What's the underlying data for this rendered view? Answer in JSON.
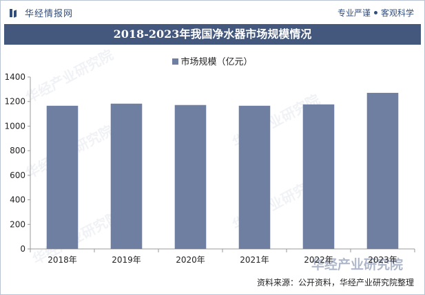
{
  "header": {
    "logo_text": "华经情报网",
    "slogan_left": "专业严谨",
    "slogan_right": "客观科学"
  },
  "title": "2018-2023年我国净水器市场规模情况",
  "legend_label": "市场规模（亿元）",
  "source": "资料来源：公开资料，华经产业研究院整理",
  "watermark_text": "华经产业研究院",
  "chart_data": {
    "type": "bar",
    "categories": [
      "2018年",
      "2019年",
      "2020年",
      "2021年",
      "2022年",
      "2023年"
    ],
    "series": [
      {
        "name": "市场规模（亿元）",
        "values": [
          1166,
          1183,
          1172,
          1166,
          1177,
          1271
        ]
      }
    ],
    "ylim": [
      0,
      1400
    ],
    "yticks": [
      0,
      200,
      400,
      600,
      800,
      1000,
      1200,
      1400
    ],
    "grid": false,
    "legend_position": "top-center",
    "colors": {
      "bar": "#6e7fa2",
      "axis": "#999999",
      "title_bg": "#44587d"
    }
  }
}
